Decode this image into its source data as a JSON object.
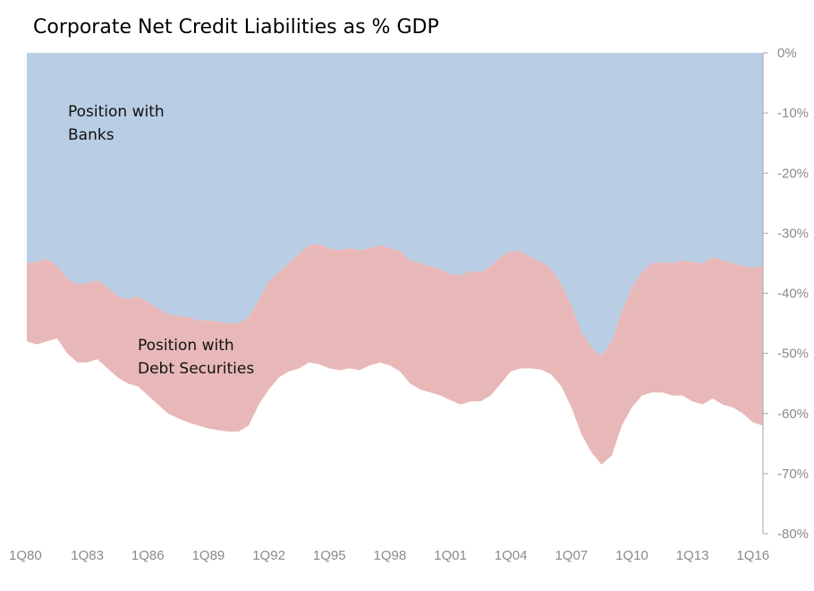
{
  "chart_data": {
    "type": "area",
    "title": "Corporate Net Credit Liabilities as % GDP",
    "xlabel": "",
    "ylabel": "",
    "x_ticks": [
      "1Q80",
      "1Q83",
      "1Q86",
      "1Q89",
      "1Q92",
      "1Q95",
      "1Q98",
      "1Q01",
      "1Q04",
      "1Q07",
      "1Q10",
      "1Q13",
      "1Q16"
    ],
    "y_ticks": [
      "0%",
      "-10%",
      "-20%",
      "-30%",
      "-40%",
      "-50%",
      "-60%",
      "-70%",
      "-80%"
    ],
    "ylim": [
      -80,
      0
    ],
    "xlim": [
      1980.0,
      2016.5
    ],
    "y_axis_side": "right",
    "grid": false,
    "legend": "none",
    "x": [
      1980.0,
      1980.5,
      1981.0,
      1981.5,
      1982.0,
      1982.5,
      1983.0,
      1983.5,
      1984.0,
      1984.5,
      1985.0,
      1985.5,
      1986.0,
      1986.5,
      1987.0,
      1987.5,
      1988.0,
      1988.5,
      1989.0,
      1989.5,
      1990.0,
      1990.5,
      1991.0,
      1991.5,
      1992.0,
      1992.5,
      1993.0,
      1993.5,
      1994.0,
      1994.5,
      1995.0,
      1995.5,
      1996.0,
      1996.5,
      1997.0,
      1997.5,
      1998.0,
      1998.5,
      1999.0,
      1999.5,
      2000.0,
      2000.5,
      2001.0,
      2001.5,
      2002.0,
      2002.5,
      2003.0,
      2003.5,
      2004.0,
      2004.5,
      2005.0,
      2005.5,
      2006.0,
      2006.5,
      2007.0,
      2007.5,
      2008.0,
      2008.5,
      2009.0,
      2009.5,
      2010.0,
      2010.5,
      2011.0,
      2011.5,
      2012.0,
      2012.5,
      2013.0,
      2013.5,
      2014.0,
      2014.5,
      2015.0,
      2015.5,
      2016.0,
      2016.5
    ],
    "series": [
      {
        "name": "Position with Banks",
        "color": "#b9cde4",
        "boundary_values": [
          -35.0,
          -34.8,
          -34.3,
          -35.5,
          -37.5,
          -38.5,
          -38.3,
          -37.8,
          -39.0,
          -40.5,
          -41.0,
          -40.5,
          -41.5,
          -42.5,
          -43.5,
          -43.8,
          -44.0,
          -44.5,
          -44.5,
          -44.7,
          -45.0,
          -45.0,
          -44.0,
          -41.0,
          -38.0,
          -36.5,
          -35.0,
          -33.5,
          -32.0,
          -31.8,
          -32.5,
          -32.8,
          -32.5,
          -32.8,
          -32.5,
          -32.0,
          -32.5,
          -33.0,
          -34.5,
          -35.0,
          -35.5,
          -36.0,
          -36.8,
          -37.0,
          -36.3,
          -36.5,
          -35.5,
          -34.0,
          -33.0,
          -33.0,
          -34.0,
          -34.8,
          -36.0,
          -38.5,
          -42.0,
          -46.5,
          -49.0,
          -50.5,
          -48.0,
          -43.0,
          -39.0,
          -36.5,
          -35.0,
          -34.8,
          -35.0,
          -34.5,
          -34.8,
          -35.0,
          -34.0,
          -34.5,
          -35.0,
          -35.5,
          -35.8,
          -35.5
        ]
      },
      {
        "name": "Position with Debt Securities",
        "color": "#e8b8b8",
        "boundary_values": [
          -48.0,
          -48.5,
          -48.0,
          -47.5,
          -50.0,
          -51.5,
          -51.5,
          -51.0,
          -52.5,
          -54.0,
          -55.0,
          -55.5,
          -57.0,
          -58.5,
          -60.0,
          -60.8,
          -61.5,
          -62.0,
          -62.5,
          -62.8,
          -63.0,
          -63.0,
          -62.0,
          -58.5,
          -56.0,
          -54.0,
          -53.0,
          -52.5,
          -51.5,
          -51.8,
          -52.5,
          -52.8,
          -52.5,
          -52.8,
          -52.0,
          -51.5,
          -52.0,
          -53.0,
          -55.0,
          -56.0,
          -56.5,
          -57.0,
          -57.8,
          -58.5,
          -58.0,
          -58.0,
          -57.0,
          -55.0,
          -53.0,
          -52.5,
          -52.5,
          -52.7,
          -53.5,
          -55.5,
          -59.0,
          -63.5,
          -66.5,
          -68.5,
          -67.0,
          -62.0,
          -59.0,
          -57.0,
          -56.5,
          -56.5,
          -57.0,
          -57.0,
          -58.0,
          -58.5,
          -57.5,
          -58.5,
          -59.0,
          -60.0,
          -61.5,
          -62.0
        ]
      }
    ],
    "annotations": [
      {
        "name": "banks-label",
        "lines": [
          "Position with",
          "Banks"
        ]
      },
      {
        "name": "debt-label",
        "lines": [
          "Position with",
          "Debt Securities"
        ]
      }
    ]
  }
}
